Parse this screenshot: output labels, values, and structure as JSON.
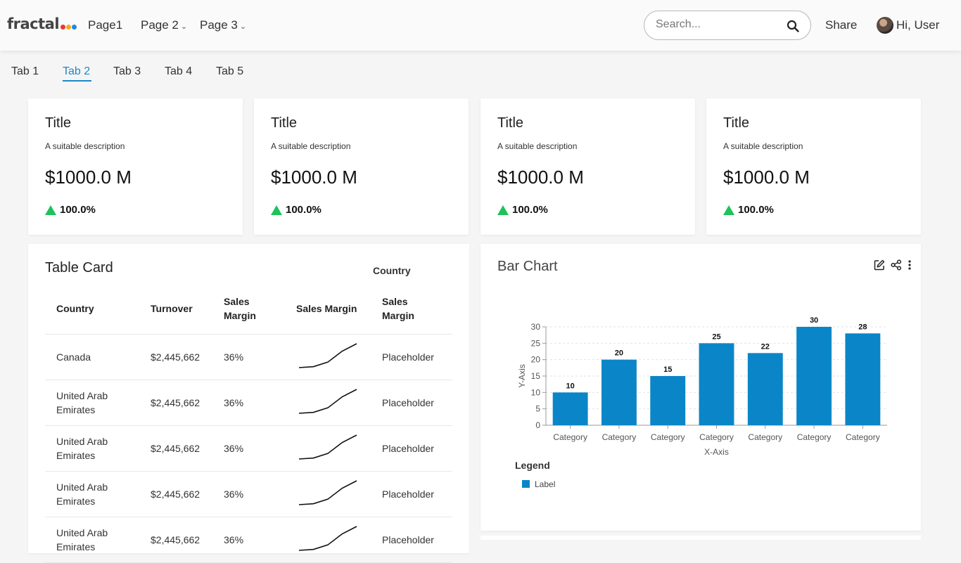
{
  "header": {
    "logo_text": "fractal",
    "logo_dot_colors": [
      "#e53935",
      "#f9a825",
      "#1e88e5"
    ],
    "nav": [
      {
        "label": "Page1",
        "has_dropdown": false
      },
      {
        "label": "Page 2",
        "has_dropdown": true
      },
      {
        "label": "Page 3",
        "has_dropdown": true
      }
    ],
    "search_placeholder": "Search...",
    "share_label": "Share",
    "user_greeting": "Hi, User"
  },
  "tabs": {
    "items": [
      "Tab 1",
      "Tab 2",
      "Tab 3",
      "Tab 4",
      "Tab 5"
    ],
    "active": "Tab 2",
    "accent_color": "#1e88c9"
  },
  "kpis": [
    {
      "title": "Title",
      "description": "A suitable description",
      "value": "$1000.0 M",
      "change": "100.0%"
    },
    {
      "title": "Title",
      "description": "A suitable description",
      "value": "$1000.0 M",
      "change": "100.0%"
    },
    {
      "title": "Title",
      "description": "A suitable description",
      "value": "$1000.0 M",
      "change": "100.0%"
    },
    {
      "title": "Title",
      "description": "A suitable description",
      "value": "$1000.0 M",
      "change": "100.0%"
    }
  ],
  "kpi_up_color": "#1ec25a",
  "table_card": {
    "title": "Table Card",
    "group_header": "Country",
    "columns": [
      "Country",
      "Turnover",
      "Sales Margin",
      "Sales Margin",
      "Sales Margin"
    ],
    "rows": [
      {
        "country": "Canada",
        "turnover": "$2,445,662",
        "margin": "36%",
        "trend": [
          2,
          3,
          8,
          20,
          28
        ],
        "placeholder": "Placeholder"
      },
      {
        "country": "United Arab Emirates",
        "turnover": "$2,445,662",
        "margin": "36%",
        "trend": [
          2,
          3,
          8,
          20,
          28
        ],
        "placeholder": "Placeholder"
      },
      {
        "country": "United Arab Emirates",
        "turnover": "$2,445,662",
        "margin": "36%",
        "trend": [
          2,
          3,
          8,
          20,
          28
        ],
        "placeholder": "Placeholder"
      },
      {
        "country": "United Arab Emirates",
        "turnover": "$2,445,662",
        "margin": "36%",
        "trend": [
          2,
          3,
          8,
          20,
          28
        ],
        "placeholder": "Placeholder"
      },
      {
        "country": "United Arab Emirates",
        "turnover": "$2,445,662",
        "margin": "36%",
        "trend": [
          2,
          3,
          8,
          20,
          28
        ],
        "placeholder": "Placeholder"
      }
    ]
  },
  "bar_chart": {
    "title": "Bar Chart",
    "toolbar_icons": [
      "edit-icon",
      "share-icon",
      "more-vertical-icon"
    ]
  },
  "chart_data": {
    "type": "bar",
    "categories": [
      "Category",
      "Category",
      "Category",
      "Category",
      "Category",
      "Category",
      "Category"
    ],
    "values": [
      10,
      20,
      15,
      25,
      22,
      30,
      28
    ],
    "xlabel": "X-Axis",
    "ylabel": "Y-Axis",
    "ylim": [
      0,
      30
    ],
    "yticks": [
      0,
      5,
      10,
      15,
      20,
      25,
      30
    ],
    "grid": true,
    "legend": {
      "title": "Legend",
      "entries": [
        "Label"
      ],
      "position": "bottom-left"
    },
    "bar_color": "#0a86c8"
  }
}
